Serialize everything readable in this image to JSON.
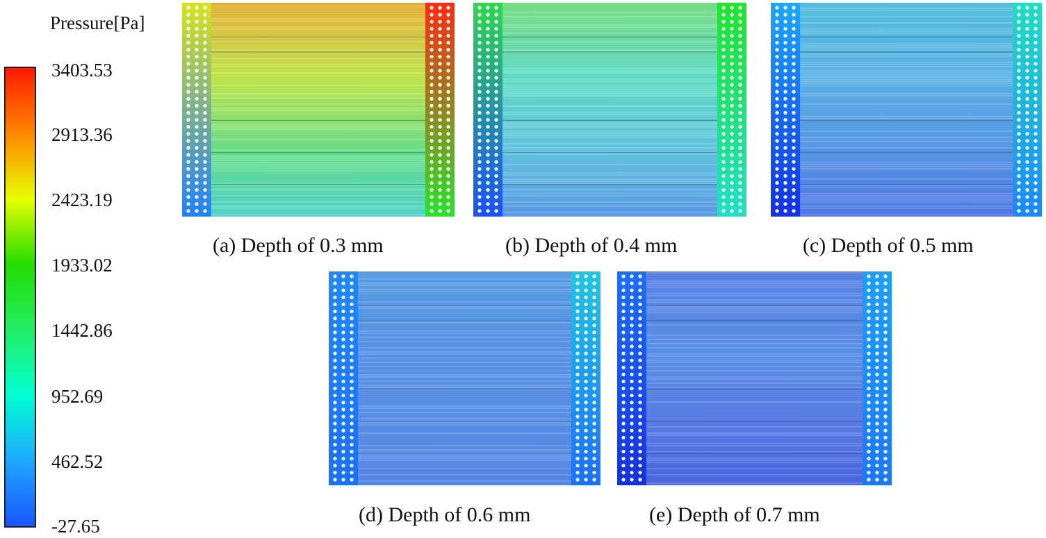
{
  "legend": {
    "title": "Pressure[Pa]",
    "ticks": [
      "3403.53",
      "2913.36",
      "2423.19",
      "1933.02",
      "1442.86",
      "952.69",
      "462.52",
      "-27.65"
    ],
    "colors": [
      "#ff1a00",
      "#ff8800",
      "#e6ff00",
      "#22dd00",
      "#22ee66",
      "#00ffd2",
      "#1ea8ff",
      "#1a55ff"
    ]
  },
  "panels": [
    {
      "caption": "(a) Depth of 0.3 mm",
      "depth_mm": 0.3,
      "field": {
        "top": "#e6b43c",
        "mid": "#c4e84c",
        "low": "#6ae08c",
        "bottom": "#52d6cc"
      },
      "left_strip": {
        "top": "#d6e41c",
        "bottom": "#1e80ff"
      },
      "right_strip": {
        "top": "#ff2a10",
        "bottom": "#22e62a"
      }
    },
    {
      "caption": "(b) Depth of 0.4 mm",
      "depth_mm": 0.4,
      "field": {
        "top": "#7ae086",
        "mid": "#64dec8",
        "low": "#64c4e0",
        "bottom": "#5a9ce6"
      },
      "left_strip": {
        "top": "#2cd94a",
        "bottom": "#1a50ff"
      },
      "right_strip": {
        "top": "#1ee62a",
        "bottom": "#1ee0c8"
      }
    },
    {
      "caption": "(c) Depth of 0.5 mm",
      "depth_mm": 0.5,
      "field": {
        "top": "#58c2de",
        "mid": "#5cb2e6",
        "low": "#5a98e6",
        "bottom": "#5078e6"
      },
      "left_strip": {
        "top": "#1aa8ff",
        "bottom": "#1230e8"
      },
      "right_strip": {
        "top": "#1ee0c0",
        "bottom": "#1a88ff"
      }
    },
    {
      "caption": "(d) Depth of 0.6 mm",
      "depth_mm": 0.6,
      "field": {
        "top": "#5aa0e4",
        "mid": "#5a94e6",
        "low": "#5a90e6",
        "bottom": "#5888e6"
      },
      "left_strip": {
        "top": "#1e88ff",
        "bottom": "#1a70ff"
      },
      "right_strip": {
        "top": "#1ec8e0",
        "bottom": "#1a70ff"
      }
    },
    {
      "caption": "(e) Depth of 0.7 mm",
      "depth_mm": 0.7,
      "field": {
        "top": "#5a82e6",
        "mid": "#5a92e6",
        "low": "#5a7ee6",
        "bottom": "#4a68e0"
      },
      "left_strip": {
        "top": "#1a70ff",
        "bottom": "#1430e4"
      },
      "right_strip": {
        "top": "#1aa0ff",
        "bottom": "#1a78ff"
      }
    }
  ]
}
